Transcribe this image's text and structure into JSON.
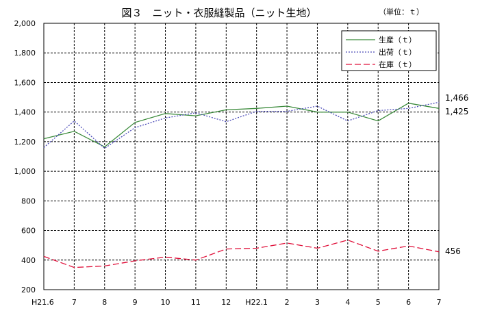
{
  "chart_data": {
    "type": "line",
    "title": "図３　ニット・衣服縫製品（ニット生地）",
    "unit": "（単位：ｔ）",
    "x": [
      "H21.6",
      "7",
      "8",
      "9",
      "10",
      "11",
      "12",
      "H22.1",
      "2",
      "3",
      "4",
      "5",
      "6",
      "7"
    ],
    "ylim": [
      200,
      2000
    ],
    "yticks": [
      "200",
      "400",
      "600",
      "800",
      "1,000",
      "1,200",
      "1,400",
      "1,600",
      "1,800",
      "2,000"
    ],
    "grid": true,
    "legend_position": "top-right",
    "series": [
      {
        "name": "生産（ｔ）",
        "color": "#3a8a3a",
        "dash": "solid",
        "values": [
          1220,
          1270,
          1165,
          1330,
          1390,
          1375,
          1415,
          1425,
          1440,
          1400,
          1400,
          1340,
          1460,
          1425
        ]
      },
      {
        "name": "出荷（ｔ）",
        "color": "#4b4bb8",
        "dash": "dotted",
        "values": [
          1160,
          1340,
          1155,
          1295,
          1360,
          1395,
          1335,
          1405,
          1405,
          1440,
          1340,
          1410,
          1425,
          1466
        ]
      },
      {
        "name": "在庫（ｔ）",
        "color": "#e0103a",
        "dash": "dashed",
        "values": [
          425,
          350,
          360,
          395,
          420,
          400,
          475,
          480,
          515,
          480,
          535,
          460,
          495,
          456
        ]
      }
    ],
    "annotations": [
      "1,466",
      "1,425",
      "456"
    ]
  }
}
